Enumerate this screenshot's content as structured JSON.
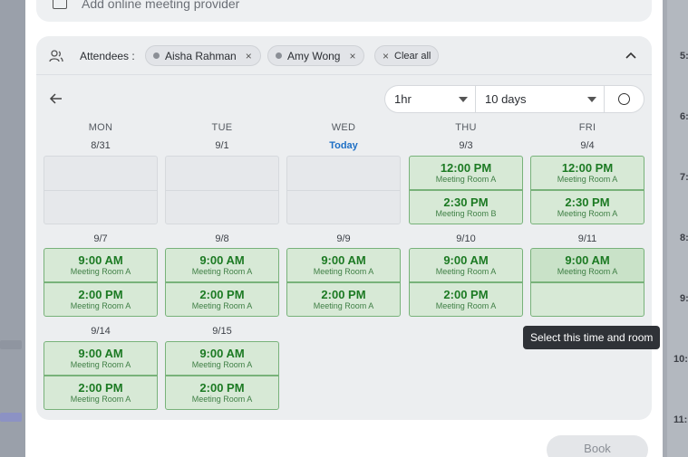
{
  "meeting_provider": {
    "label": "Add online meeting provider"
  },
  "attendees": {
    "label": "Attendees :",
    "chips": [
      {
        "name": "Aisha Rahman",
        "remove": "×"
      },
      {
        "name": "Amy Wong",
        "remove": "×"
      }
    ],
    "clear_all": {
      "icon": "×",
      "label": "Clear all"
    }
  },
  "controls": {
    "duration": "1hr",
    "range": "10 days"
  },
  "days": [
    "MON",
    "TUE",
    "WED",
    "THU",
    "FRI"
  ],
  "weeks": [
    {
      "dates": [
        "8/31",
        "9/1",
        "Today",
        "9/3",
        "9/4"
      ]
    },
    {
      "dates": [
        "9/7",
        "9/8",
        "9/9",
        "9/10",
        "9/11"
      ]
    },
    {
      "dates": [
        "9/14",
        "9/15"
      ]
    }
  ],
  "slots": {
    "w1_thu_1": {
      "time": "12:00 PM",
      "room": "Meeting Room A"
    },
    "w1_thu_2": {
      "time": "2:30 PM",
      "room": "Meeting Room B"
    },
    "w1_fri_1": {
      "time": "12:00 PM",
      "room": "Meeting Room A"
    },
    "w1_fri_2": {
      "time": "2:30 PM",
      "room": "Meeting Room A"
    },
    "w2_mon_1": {
      "time": "9:00 AM",
      "room": "Meeting Room A"
    },
    "w2_mon_2": {
      "time": "2:00 PM",
      "room": "Meeting Room A"
    },
    "w2_tue_1": {
      "time": "9:00 AM",
      "room": "Meeting Room A"
    },
    "w2_tue_2": {
      "time": "2:00 PM",
      "room": "Meeting Room A"
    },
    "w2_wed_1": {
      "time": "9:00 AM",
      "room": "Meeting Room A"
    },
    "w2_wed_2": {
      "time": "2:00 PM",
      "room": "Meeting Room A"
    },
    "w2_thu_1": {
      "time": "9:00 AM",
      "room": "Meeting Room A"
    },
    "w2_thu_2": {
      "time": "2:00 PM",
      "room": "Meeting Room A"
    },
    "w2_fri_1": {
      "time": "9:00 AM",
      "room": "Meeting Room A"
    },
    "w3_mon_1": {
      "time": "9:00 AM",
      "room": "Meeting Room A"
    },
    "w3_mon_2": {
      "time": "2:00 PM",
      "room": "Meeting Room A"
    },
    "w3_tue_1": {
      "time": "9:00 AM",
      "room": "Meeting Room A"
    },
    "w3_tue_2": {
      "time": "2:00 PM",
      "room": "Meeting Room A"
    }
  },
  "tooltip": "Select this time and room",
  "book_button": "Book",
  "background_calendar_hours": [
    "5:",
    "6:",
    "7:",
    "8:",
    "9:",
    "10:",
    "11:"
  ],
  "colors": {
    "slot_bg": "#d7e9d6",
    "slot_border": "#78b27a",
    "slot_text": "#1c7a23",
    "today": "#1d6fc5"
  }
}
